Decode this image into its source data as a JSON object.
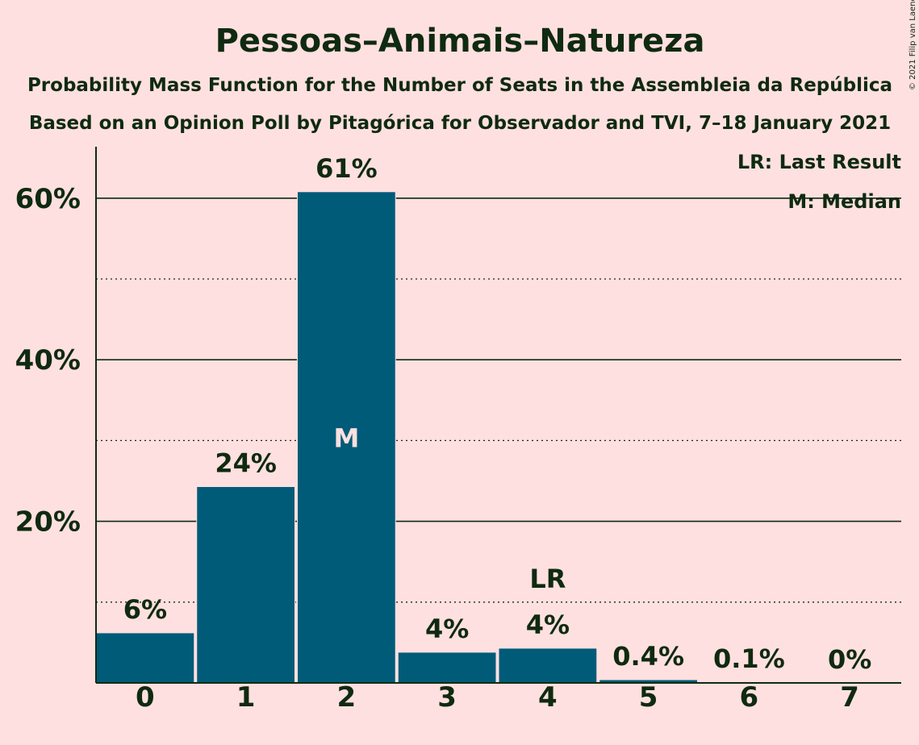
{
  "chart_data": {
    "type": "bar",
    "title": "Pessoas–Animais–Natureza",
    "subtitle_1": "Probability Mass Function for the Number of Seats in the Assembleia da República",
    "subtitle_2": "Based on an Opinion Poll by Pitagórica for Observador and TVI, 7–18 January 2021",
    "categories": [
      "0",
      "1",
      "2",
      "3",
      "4",
      "5",
      "6",
      "7"
    ],
    "values": [
      6.2,
      24.3,
      60.8,
      3.8,
      4.3,
      0.4,
      0.1,
      0
    ],
    "value_labels": [
      "6%",
      "24%",
      "61%",
      "4%",
      "4%",
      "0.4%",
      "0.1%",
      "0%"
    ],
    "y_ticks": [
      {
        "value": 20,
        "label": "20%"
      },
      {
        "value": 40,
        "label": "40%"
      },
      {
        "value": 60,
        "label": "60%"
      }
    ],
    "minor_gridlines": [
      10,
      30,
      50
    ],
    "ylim": [
      0,
      66
    ],
    "median_index": 2,
    "median_marker": "M",
    "last_result_index": 4,
    "last_result_marker": "LR",
    "legend": {
      "position": "top-right",
      "items": [
        "LR: Last Result",
        "M: Median"
      ]
    },
    "colors": {
      "bar": "#005B78",
      "background": "#FFE0E0",
      "text": "#0F2A10",
      "median_text": "#FFE0E0"
    },
    "copyright": "© 2021 Filip van Laenen"
  }
}
